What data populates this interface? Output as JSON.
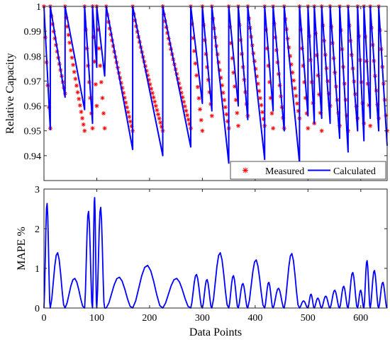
{
  "chart_data": [
    {
      "type": "line",
      "panel": "top",
      "ylabel": "Relative Capacity",
      "xlabel": "",
      "xlim": [
        0,
        650
      ],
      "ylim": [
        0.93,
        1.0
      ],
      "yticks": [
        "0.94",
        "0.95",
        "0.96",
        "0.97",
        "0.98",
        "0.99",
        "1"
      ],
      "xticks": [
        "0",
        "100",
        "200",
        "300",
        "400",
        "500",
        "600"
      ],
      "legend": {
        "position": "bottom-right",
        "entries": [
          "Measured",
          "Calculated"
        ]
      },
      "colors": {
        "measured": "#ff0000",
        "calculated": "#0000ff"
      },
      "cycles": [
        {
          "start": 0,
          "end": 12,
          "meas_min": 0.951,
          "calc_min": 0.9505
        },
        {
          "start": 12,
          "end": 40,
          "meas_min": 0.965,
          "calc_min": 0.9635
        },
        {
          "start": 40,
          "end": 77,
          "meas_min": 0.95,
          "calc_min": 0.9585
        },
        {
          "start": 77,
          "end": 92,
          "meas_min": 0.951,
          "calc_min": 0.953
        },
        {
          "start": 92,
          "end": 100,
          "meas_min": 0.96,
          "calc_min": 0.9755
        },
        {
          "start": 100,
          "end": 115,
          "meas_min": 0.951,
          "calc_min": 0.972
        },
        {
          "start": 118,
          "end": 168,
          "meas_min": 0.95,
          "calc_min": 0.9425
        },
        {
          "start": 168,
          "end": 225,
          "meas_min": 0.95,
          "calc_min": 0.94
        },
        {
          "start": 225,
          "end": 278,
          "meas_min": 0.951,
          "calc_min": 0.9435
        },
        {
          "start": 278,
          "end": 300,
          "meas_min": 0.95,
          "calc_min": 0.961
        },
        {
          "start": 300,
          "end": 318,
          "meas_min": 0.956,
          "calc_min": 0.958
        },
        {
          "start": 318,
          "end": 350,
          "meas_min": 0.951,
          "calc_min": 0.937
        },
        {
          "start": 350,
          "end": 368,
          "meas_min": 0.952,
          "calc_min": 0.96
        },
        {
          "start": 368,
          "end": 386,
          "meas_min": 0.956,
          "calc_min": 0.9545
        },
        {
          "start": 386,
          "end": 418,
          "meas_min": 0.952,
          "calc_min": 0.9385
        },
        {
          "start": 418,
          "end": 434,
          "meas_min": 0.951,
          "calc_min": 0.958
        },
        {
          "start": 434,
          "end": 455,
          "meas_min": 0.951,
          "calc_min": 0.95
        },
        {
          "start": 455,
          "end": 484,
          "meas_min": 0.955,
          "calc_min": 0.937
        },
        {
          "start": 484,
          "end": 500,
          "meas_min": 0.951,
          "calc_min": 0.956
        },
        {
          "start": 500,
          "end": 512,
          "meas_min": 0.953,
          "calc_min": 0.953
        },
        {
          "start": 512,
          "end": 526,
          "meas_min": 0.95,
          "calc_min": 0.955
        },
        {
          "start": 526,
          "end": 542,
          "meas_min": 0.96,
          "calc_min": 0.953
        },
        {
          "start": 542,
          "end": 560,
          "meas_min": 0.952,
          "calc_min": 0.947
        },
        {
          "start": 560,
          "end": 576,
          "meas_min": 0.95,
          "calc_min": 0.9415
        },
        {
          "start": 576,
          "end": 594,
          "meas_min": 0.955,
          "calc_min": 0.95
        },
        {
          "start": 594,
          "end": 606,
          "meas_min": 0.953,
          "calc_min": 0.946
        },
        {
          "start": 606,
          "end": 618,
          "meas_min": 0.952,
          "calc_min": 0.955
        },
        {
          "start": 618,
          "end": 634,
          "meas_min": 0.955,
          "calc_min": 0.95
        },
        {
          "start": 634,
          "end": 650,
          "meas_min": 0.95,
          "calc_min": 0.944
        }
      ]
    },
    {
      "type": "line",
      "panel": "bottom",
      "ylabel": "MAPE %",
      "xlabel": "Data Points",
      "xlim": [
        0,
        650
      ],
      "ylim": [
        0,
        3
      ],
      "yticks": [
        "0",
        "1",
        "2",
        "3"
      ],
      "xticks": [
        "0",
        "100",
        "200",
        "300",
        "400",
        "500",
        "600"
      ],
      "color": "#0000ff",
      "segments": [
        {
          "start": 0,
          "end": 12,
          "peak": 2.65
        },
        {
          "start": 12,
          "end": 40,
          "peak": 1.4
        },
        {
          "start": 40,
          "end": 77,
          "peak": 0.75
        },
        {
          "start": 77,
          "end": 92,
          "peak": 2.45
        },
        {
          "start": 92,
          "end": 100,
          "peak": 2.8
        },
        {
          "start": 100,
          "end": 115,
          "peak": 2.55
        },
        {
          "start": 118,
          "end": 168,
          "peak": 0.78
        },
        {
          "start": 168,
          "end": 225,
          "peak": 1.08
        },
        {
          "start": 225,
          "end": 278,
          "peak": 0.75
        },
        {
          "start": 278,
          "end": 300,
          "peak": 0.85
        },
        {
          "start": 300,
          "end": 318,
          "peak": 0.72
        },
        {
          "start": 318,
          "end": 350,
          "peak": 1.4
        },
        {
          "start": 350,
          "end": 368,
          "peak": 0.82
        },
        {
          "start": 368,
          "end": 386,
          "peak": 0.62
        },
        {
          "start": 386,
          "end": 418,
          "peak": 1.22
        },
        {
          "start": 418,
          "end": 434,
          "peak": 0.65
        },
        {
          "start": 434,
          "end": 455,
          "peak": 0.5
        },
        {
          "start": 455,
          "end": 484,
          "peak": 1.38
        },
        {
          "start": 484,
          "end": 500,
          "peak": 0.18
        },
        {
          "start": 500,
          "end": 512,
          "peak": 0.35
        },
        {
          "start": 512,
          "end": 526,
          "peak": 0.25
        },
        {
          "start": 526,
          "end": 542,
          "peak": 0.3
        },
        {
          "start": 542,
          "end": 560,
          "peak": 0.45
        },
        {
          "start": 560,
          "end": 576,
          "peak": 0.55
        },
        {
          "start": 576,
          "end": 594,
          "peak": 0.9
        },
        {
          "start": 594,
          "end": 606,
          "peak": 0.45
        },
        {
          "start": 606,
          "end": 618,
          "peak": 1.2
        },
        {
          "start": 618,
          "end": 634,
          "peak": 0.95
        },
        {
          "start": 634,
          "end": 650,
          "peak": 0.65
        }
      ]
    }
  ]
}
